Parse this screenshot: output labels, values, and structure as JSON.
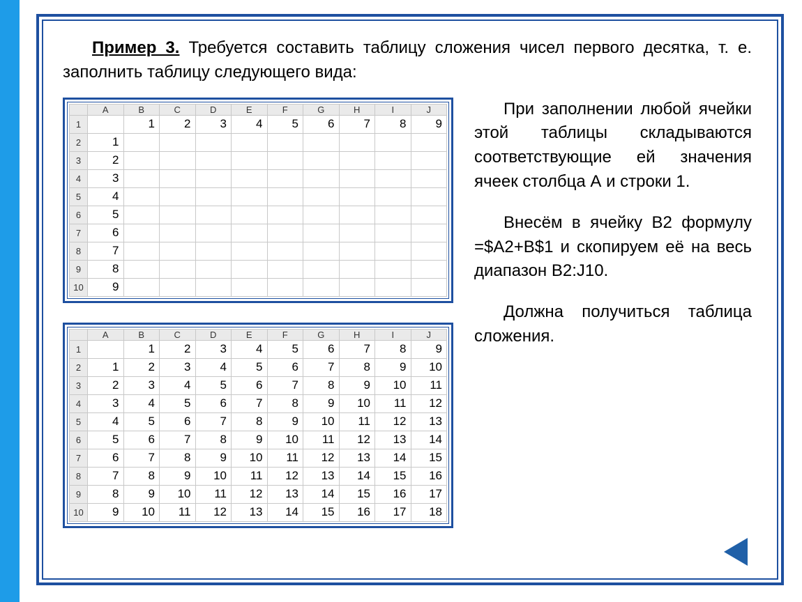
{
  "intro": {
    "title": "Пример 3.",
    "text": " Требуется составить таблицу сложения чисел первого десятка, т. е. заполнить таблицу следующего вида:"
  },
  "paragraphs": {
    "p1": "При заполнении любой ячейки этой таблицы складываются соответствующие ей значения ячеек столбца А и строки 1.",
    "p2": "Внесём в ячейку В2 формулу =$A2+B$1 и скопируем её на весь диапазон В2:J10.",
    "p3": "Должна получиться таблица сложения."
  },
  "sheet": {
    "columns": [
      "A",
      "B",
      "C",
      "D",
      "E",
      "F",
      "G",
      "H",
      "I",
      "J"
    ],
    "rowHeaders": [
      "1",
      "2",
      "3",
      "4",
      "5",
      "6",
      "7",
      "8",
      "9",
      "10"
    ],
    "emptyGrid": [
      [
        "",
        "1",
        "2",
        "3",
        "4",
        "5",
        "6",
        "7",
        "8",
        "9"
      ],
      [
        "1",
        "",
        "",
        "",
        "",
        "",
        "",
        "",
        "",
        ""
      ],
      [
        "2",
        "",
        "",
        "",
        "",
        "",
        "",
        "",
        "",
        ""
      ],
      [
        "3",
        "",
        "",
        "",
        "",
        "",
        "",
        "",
        "",
        ""
      ],
      [
        "4",
        "",
        "",
        "",
        "",
        "",
        "",
        "",
        "",
        ""
      ],
      [
        "5",
        "",
        "",
        "",
        "",
        "",
        "",
        "",
        "",
        ""
      ],
      [
        "6",
        "",
        "",
        "",
        "",
        "",
        "",
        "",
        "",
        ""
      ],
      [
        "7",
        "",
        "",
        "",
        "",
        "",
        "",
        "",
        "",
        ""
      ],
      [
        "8",
        "",
        "",
        "",
        "",
        "",
        "",
        "",
        "",
        ""
      ],
      [
        "9",
        "",
        "",
        "",
        "",
        "",
        "",
        "",
        "",
        ""
      ]
    ],
    "filledGrid": [
      [
        "",
        "1",
        "2",
        "3",
        "4",
        "5",
        "6",
        "7",
        "8",
        "9"
      ],
      [
        "1",
        "2",
        "3",
        "4",
        "5",
        "6",
        "7",
        "8",
        "9",
        "10"
      ],
      [
        "2",
        "3",
        "4",
        "5",
        "6",
        "7",
        "8",
        "9",
        "10",
        "11"
      ],
      [
        "3",
        "4",
        "5",
        "6",
        "7",
        "8",
        "9",
        "10",
        "11",
        "12"
      ],
      [
        "4",
        "5",
        "6",
        "7",
        "8",
        "9",
        "10",
        "11",
        "12",
        "13"
      ],
      [
        "5",
        "6",
        "7",
        "8",
        "9",
        "10",
        "11",
        "12",
        "13",
        "14"
      ],
      [
        "6",
        "7",
        "8",
        "9",
        "10",
        "11",
        "12",
        "13",
        "14",
        "15"
      ],
      [
        "7",
        "8",
        "9",
        "10",
        "11",
        "12",
        "13",
        "14",
        "15",
        "16"
      ],
      [
        "8",
        "9",
        "10",
        "11",
        "12",
        "13",
        "14",
        "15",
        "16",
        "17"
      ],
      [
        "9",
        "10",
        "11",
        "12",
        "13",
        "14",
        "15",
        "16",
        "17",
        "18"
      ]
    ]
  },
  "style": {
    "accent": "#1e50a0",
    "leftBar": "#1e9ce8",
    "headerBg": "#eaeaea",
    "gridBorder": "#c8c8c8",
    "fontSizeBody": 24,
    "fontSizeCell": 17,
    "colHeaderHeight": 14,
    "cellHeight": 26
  }
}
